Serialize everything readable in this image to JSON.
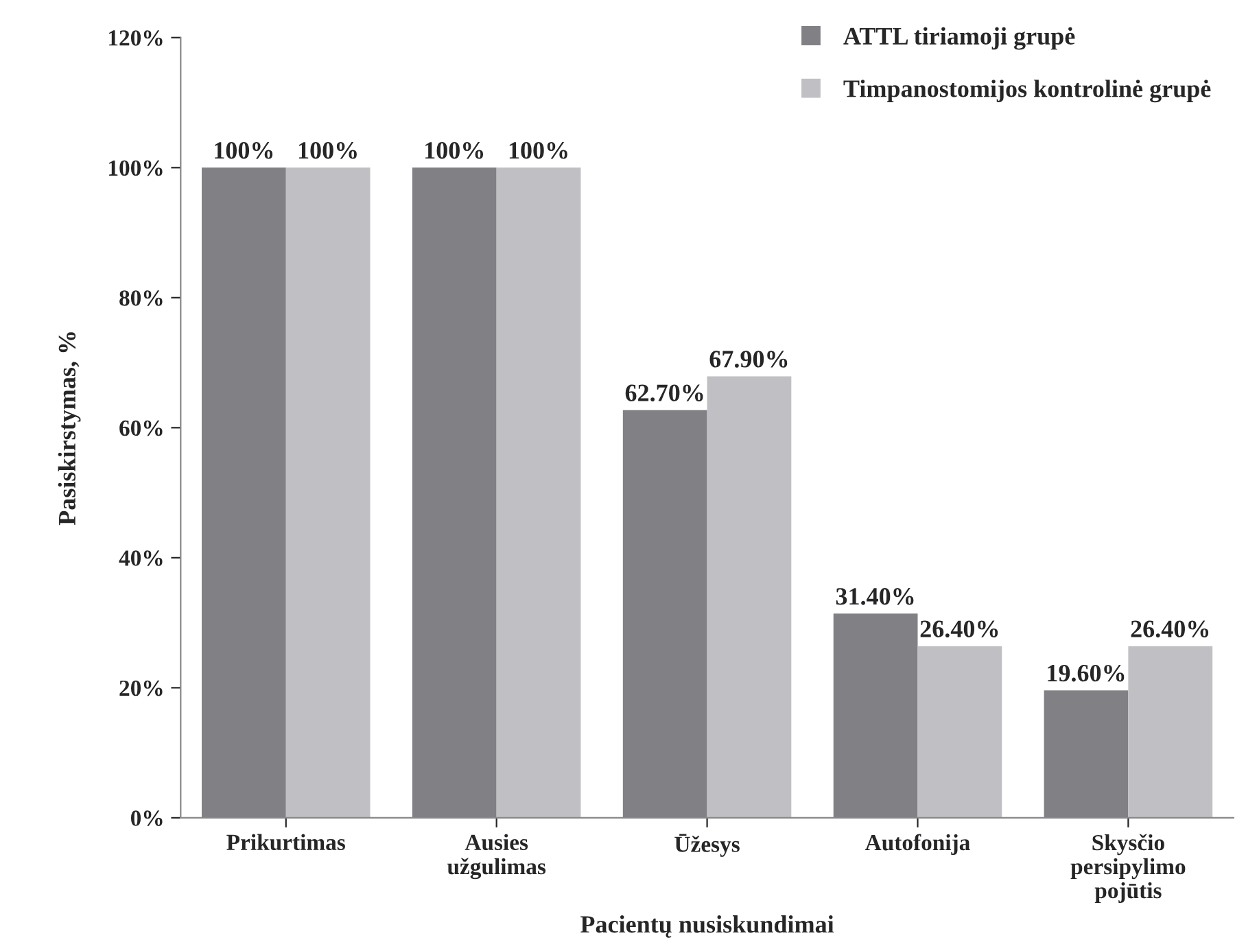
{
  "chart_data": {
    "type": "bar",
    "ylabel": "Pasiskirstymas, %",
    "xlabel": "Pacientų nusiskundimai",
    "categories": [
      "Prikurtimas",
      "Ausies\nužgulimas",
      "Ūžesys",
      "Autofonija",
      "Skysčio\npersipylimo\npojūtis"
    ],
    "series": [
      {
        "name": "ATTL tiriamoji grupė",
        "color": "#808085",
        "values": [
          100,
          100,
          62.7,
          31.4,
          19.6
        ],
        "value_labels": [
          "100%",
          "100%",
          "62.70%",
          "31.40%",
          "19.60%"
        ]
      },
      {
        "name": "Timpanostomijos kontrolinė grupė",
        "color": "#c0c0c4",
        "values": [
          100,
          100,
          67.9,
          26.4,
          26.4
        ],
        "value_labels": [
          "100%",
          "100%",
          "67.90%",
          "26.40%",
          "26.40%"
        ]
      }
    ],
    "ylim": [
      0,
      120
    ],
    "yticks": [
      {
        "value": 0,
        "label": "0%"
      },
      {
        "value": 20,
        "label": "20%"
      },
      {
        "value": 40,
        "label": "40%"
      },
      {
        "value": 60,
        "label": "60%"
      },
      {
        "value": 80,
        "label": "80%"
      },
      {
        "value": 100,
        "label": "100%"
      },
      {
        "value": 120,
        "label": "120%"
      }
    ],
    "legend": "top right",
    "grid": false
  }
}
